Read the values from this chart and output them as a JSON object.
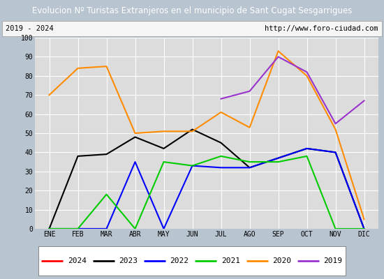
{
  "title": "Evolucion Nº Turistas Extranjeros en el municipio de Sant Cugat Sesgarrigues",
  "subtitle_left": "2019 - 2024",
  "subtitle_right": "http://www.foro-ciudad.com",
  "title_bg_color": "#4472c4",
  "title_text_color": "#ffffff",
  "plot_bg_color": "#dcdcdc",
  "grid_color": "#ffffff",
  "fig_bg_color": "#b8c4d0",
  "months": [
    "ENE",
    "FEB",
    "MAR",
    "ABR",
    "MAY",
    "JUN",
    "JUL",
    "AGO",
    "SEP",
    "OCT",
    "NOV",
    "DIC"
  ],
  "series": {
    "2024": {
      "color": "#ff0000",
      "data": [
        0,
        0,
        0,
        null,
        null,
        null,
        null,
        null,
        null,
        null,
        null,
        null
      ]
    },
    "2023": {
      "color": "#000000",
      "data": [
        0,
        38,
        39,
        48,
        42,
        52,
        45,
        32,
        37,
        42,
        40,
        0
      ]
    },
    "2022": {
      "color": "#0000ff",
      "data": [
        0,
        0,
        0,
        35,
        0,
        33,
        32,
        32,
        37,
        42,
        40,
        0
      ]
    },
    "2021": {
      "color": "#00cc00",
      "data": [
        0,
        0,
        18,
        0,
        35,
        33,
        38,
        35,
        35,
        38,
        0,
        0
      ]
    },
    "2020": {
      "color": "#ff8c00",
      "data": [
        70,
        84,
        85,
        50,
        51,
        51,
        61,
        53,
        93,
        80,
        52,
        5
      ]
    },
    "2019": {
      "color": "#9933cc",
      "data": [
        null,
        null,
        null,
        null,
        null,
        null,
        68,
        72,
        90,
        82,
        55,
        67
      ]
    }
  },
  "ylim": [
    0,
    100
  ],
  "yticks": [
    0,
    10,
    20,
    30,
    40,
    50,
    60,
    70,
    80,
    90,
    100
  ],
  "legend_order": [
    "2024",
    "2023",
    "2022",
    "2021",
    "2020",
    "2019"
  ],
  "figsize": [
    5.5,
    4.0
  ],
  "dpi": 100
}
